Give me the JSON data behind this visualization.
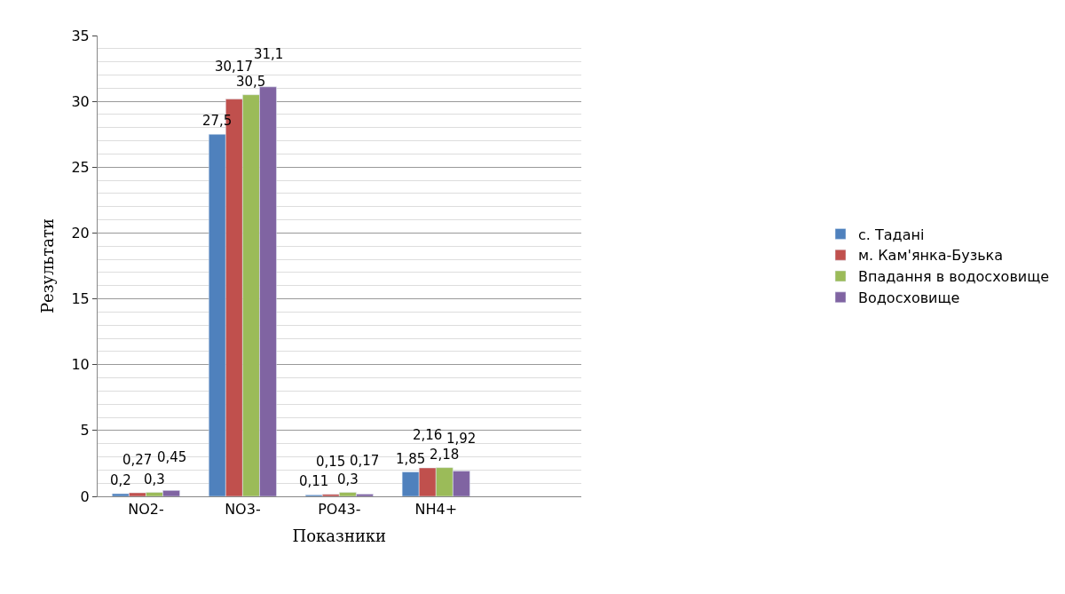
{
  "chart_data": {
    "type": "bar",
    "xlabel": "Показники",
    "ylabel": "Результати",
    "categories": [
      "NO2-",
      "NO3-",
      "PO43-",
      "NH4+"
    ],
    "series": [
      {
        "name": "с. Тадані",
        "color": "#4f81bd",
        "values": [
          0.2,
          27.5,
          0.11,
          1.85
        ],
        "value_labels": [
          "0,2",
          "27,5",
          "0,11",
          "1,85"
        ]
      },
      {
        "name": "м. Кам'янка-Бузька",
        "color": "#c0504d",
        "values": [
          0.27,
          30.17,
          0.15,
          2.16
        ],
        "value_labels": [
          "0,27",
          "30,17",
          "0,15",
          "2,16"
        ]
      },
      {
        "name": "Впадання в водосховище",
        "color": "#9bbb59",
        "values": [
          0.3,
          30.5,
          0.3,
          2.18
        ],
        "value_labels": [
          "0,3",
          "30,5",
          "0,3",
          "2,18"
        ]
      },
      {
        "name": "Водосховище",
        "color": "#8064a2",
        "values": [
          0.45,
          31.1,
          0.17,
          1.92
        ],
        "value_labels": [
          "0,45",
          "31,1",
          "0,17",
          "1,92"
        ]
      }
    ],
    "ylim": [
      0,
      35
    ],
    "yticks": [
      0,
      5,
      10,
      15,
      20,
      25,
      30,
      35
    ],
    "grid": "y",
    "legend": "right"
  }
}
